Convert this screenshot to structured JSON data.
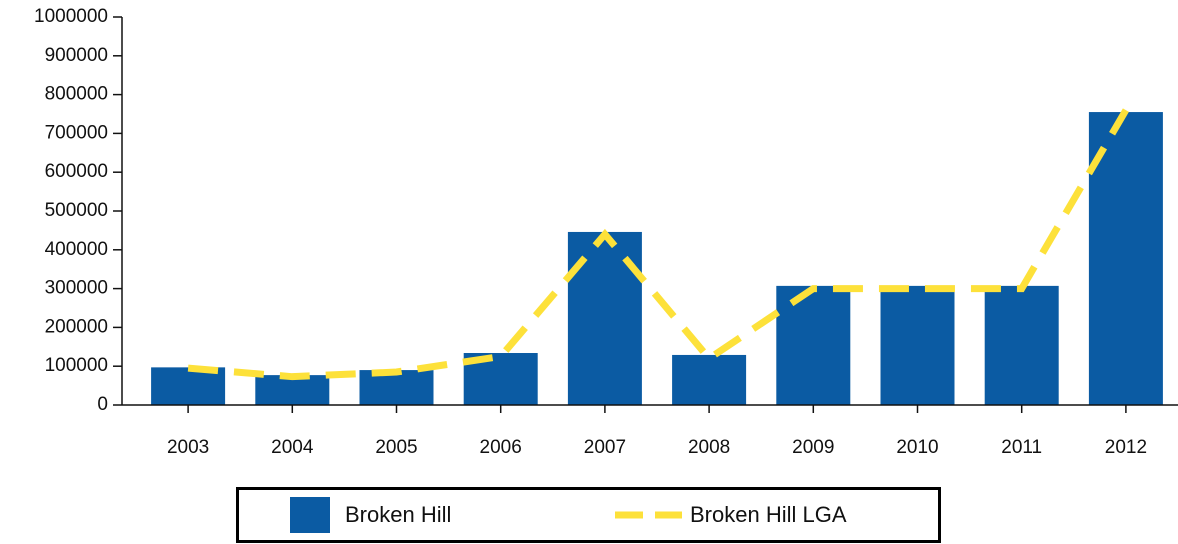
{
  "chart_data": {
    "type": "bar",
    "categories": [
      "2003",
      "2004",
      "2005",
      "2006",
      "2007",
      "2008",
      "2009",
      "2010",
      "2011",
      "2012"
    ],
    "series": [
      {
        "name": "Broken Hill",
        "type": "bar",
        "color": "#0b5ba3",
        "values": [
          97000,
          77000,
          90000,
          134000,
          446000,
          129000,
          307000,
          307000,
          307000,
          755000
        ]
      },
      {
        "name": "Broken Hill LGA",
        "type": "line",
        "color": "#fde13a",
        "values": [
          95000,
          73000,
          85000,
          125000,
          440000,
          120000,
          300000,
          300000,
          300000,
          760000
        ]
      }
    ],
    "ylim": [
      0,
      1000000
    ],
    "yticks": [
      0,
      100000,
      200000,
      300000,
      400000,
      500000,
      600000,
      700000,
      800000,
      900000,
      1000000
    ],
    "grid": false,
    "legend": "bottom"
  }
}
